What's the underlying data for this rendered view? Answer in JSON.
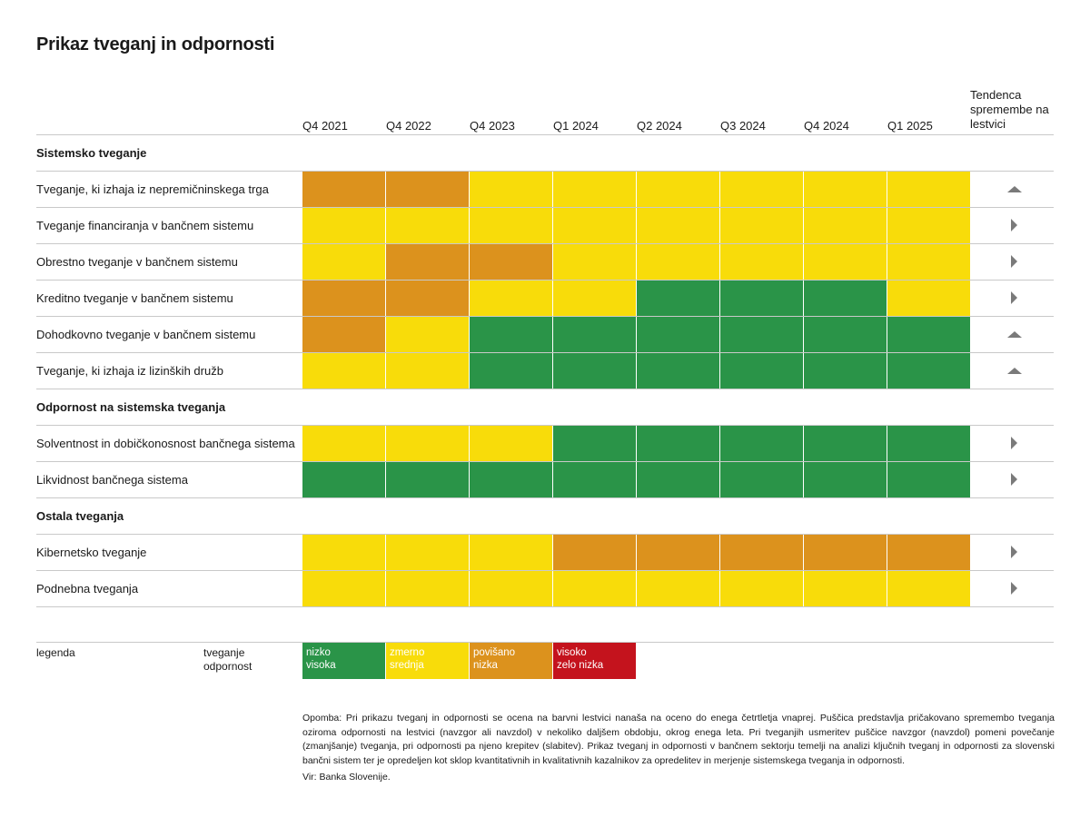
{
  "title": "Prikaz tveganj in odpornosti",
  "columns": [
    "Q4 2021",
    "Q4 2022",
    "Q4 2023",
    "Q1 2024",
    "Q2 2024",
    "Q3 2024",
    "Q4 2024",
    "Q1 2025"
  ],
  "trend_header": "Tendenca spremembe na lestvici",
  "colors": {
    "green": "#2a9448",
    "yellow": "#f8dc0a",
    "orange": "#dc921d",
    "red": "#c4131d",
    "arrow": "#7a7a7a",
    "grid": "#c9c9c9"
  },
  "chart_data": {
    "type": "heatmap",
    "title": "Prikaz tveganj in odpornosti",
    "scale_levels": [
      "green",
      "yellow",
      "orange",
      "red"
    ],
    "sections": [
      {
        "name": "Sistemsko tveganje",
        "rows": [
          {
            "label": "Tveganje, ki izhaja iz nepremičninskega trga",
            "values": [
              "orange",
              "orange",
              "yellow",
              "yellow",
              "yellow",
              "yellow",
              "yellow",
              "yellow"
            ],
            "trend": "up"
          },
          {
            "label": "Tveganje financiranja v bančnem sistemu",
            "values": [
              "yellow",
              "yellow",
              "yellow",
              "yellow",
              "yellow",
              "yellow",
              "yellow",
              "yellow"
            ],
            "trend": "right"
          },
          {
            "label": "Obrestno tveganje v bančnem sistemu",
            "values": [
              "yellow",
              "orange",
              "orange",
              "yellow",
              "yellow",
              "yellow",
              "yellow",
              "yellow"
            ],
            "trend": "right"
          },
          {
            "label": "Kreditno tveganje v bančnem sistemu",
            "values": [
              "orange",
              "orange",
              "yellow",
              "yellow",
              "green",
              "green",
              "green",
              "yellow"
            ],
            "trend": "right"
          },
          {
            "label": "Dohodkovno tveganje v bančnem sistemu",
            "values": [
              "orange",
              "yellow",
              "green",
              "green",
              "green",
              "green",
              "green",
              "green"
            ],
            "trend": "up"
          },
          {
            "label": "Tveganje, ki izhaja iz lizinških družb",
            "values": [
              "yellow",
              "yellow",
              "green",
              "green",
              "green",
              "green",
              "green",
              "green"
            ],
            "trend": "up"
          }
        ]
      },
      {
        "name": "Odpornost na sistemska tveganja",
        "rows": [
          {
            "label": "Solventnost in dobičkonosnost bančnega sistema",
            "values": [
              "yellow",
              "yellow",
              "yellow",
              "green",
              "green",
              "green",
              "green",
              "green"
            ],
            "trend": "right"
          },
          {
            "label": "Likvidnost bančnega sistema",
            "values": [
              "green",
              "green",
              "green",
              "green",
              "green",
              "green",
              "green",
              "green"
            ],
            "trend": "right"
          }
        ]
      },
      {
        "name": "Ostala tveganja",
        "rows": [
          {
            "label": "Kibernetsko tveganje",
            "values": [
              "yellow",
              "yellow",
              "yellow",
              "orange",
              "orange",
              "orange",
              "orange",
              "orange"
            ],
            "trend": "right"
          },
          {
            "label": "Podnebna tveganja",
            "values": [
              "yellow",
              "yellow",
              "yellow",
              "yellow",
              "yellow",
              "yellow",
              "yellow",
              "yellow"
            ],
            "trend": "right"
          }
        ]
      }
    ]
  },
  "legend": {
    "label": "legenda",
    "row_tveganje": "tveganje",
    "row_odpornost": "odpornost",
    "items": [
      {
        "color": "green",
        "risk": "nizko",
        "resilience": "visoka"
      },
      {
        "color": "yellow",
        "risk": "zmerno",
        "resilience": "srednja"
      },
      {
        "color": "orange",
        "risk": "povišano",
        "resilience": "nizka"
      },
      {
        "color": "red",
        "risk": "visoko",
        "resilience": "zelo nizka"
      }
    ]
  },
  "note": "Opomba: Pri prikazu tveganj in odpornosti se ocena na barvni lestvici nanaša na oceno do enega četrtletja vnaprej. Puščica predstavlja pričakovano spremembo tveganja oziroma odpornosti na lestvici (navzgor ali navzdol) v nekoliko daljšem obdobju, okrog enega leta. Pri tveganjih usmeritev puščice navzgor (navzdol) pomeni povečanje (zmanjšanje) tveganja, pri odpornosti pa njeno krepitev (slabitev). Prikaz tveganj in odpornosti v bančnem sektorju temelji na analizi ključnih tveganj in odpornosti za slovenski bančni sistem ter je opredeljen kot sklop kvantitativnih in kvalitativnih kazalnikov za opredelitev in merjenje sistemskega tveganja in odpornosti.",
  "source": "Vir: Banka Slovenije."
}
